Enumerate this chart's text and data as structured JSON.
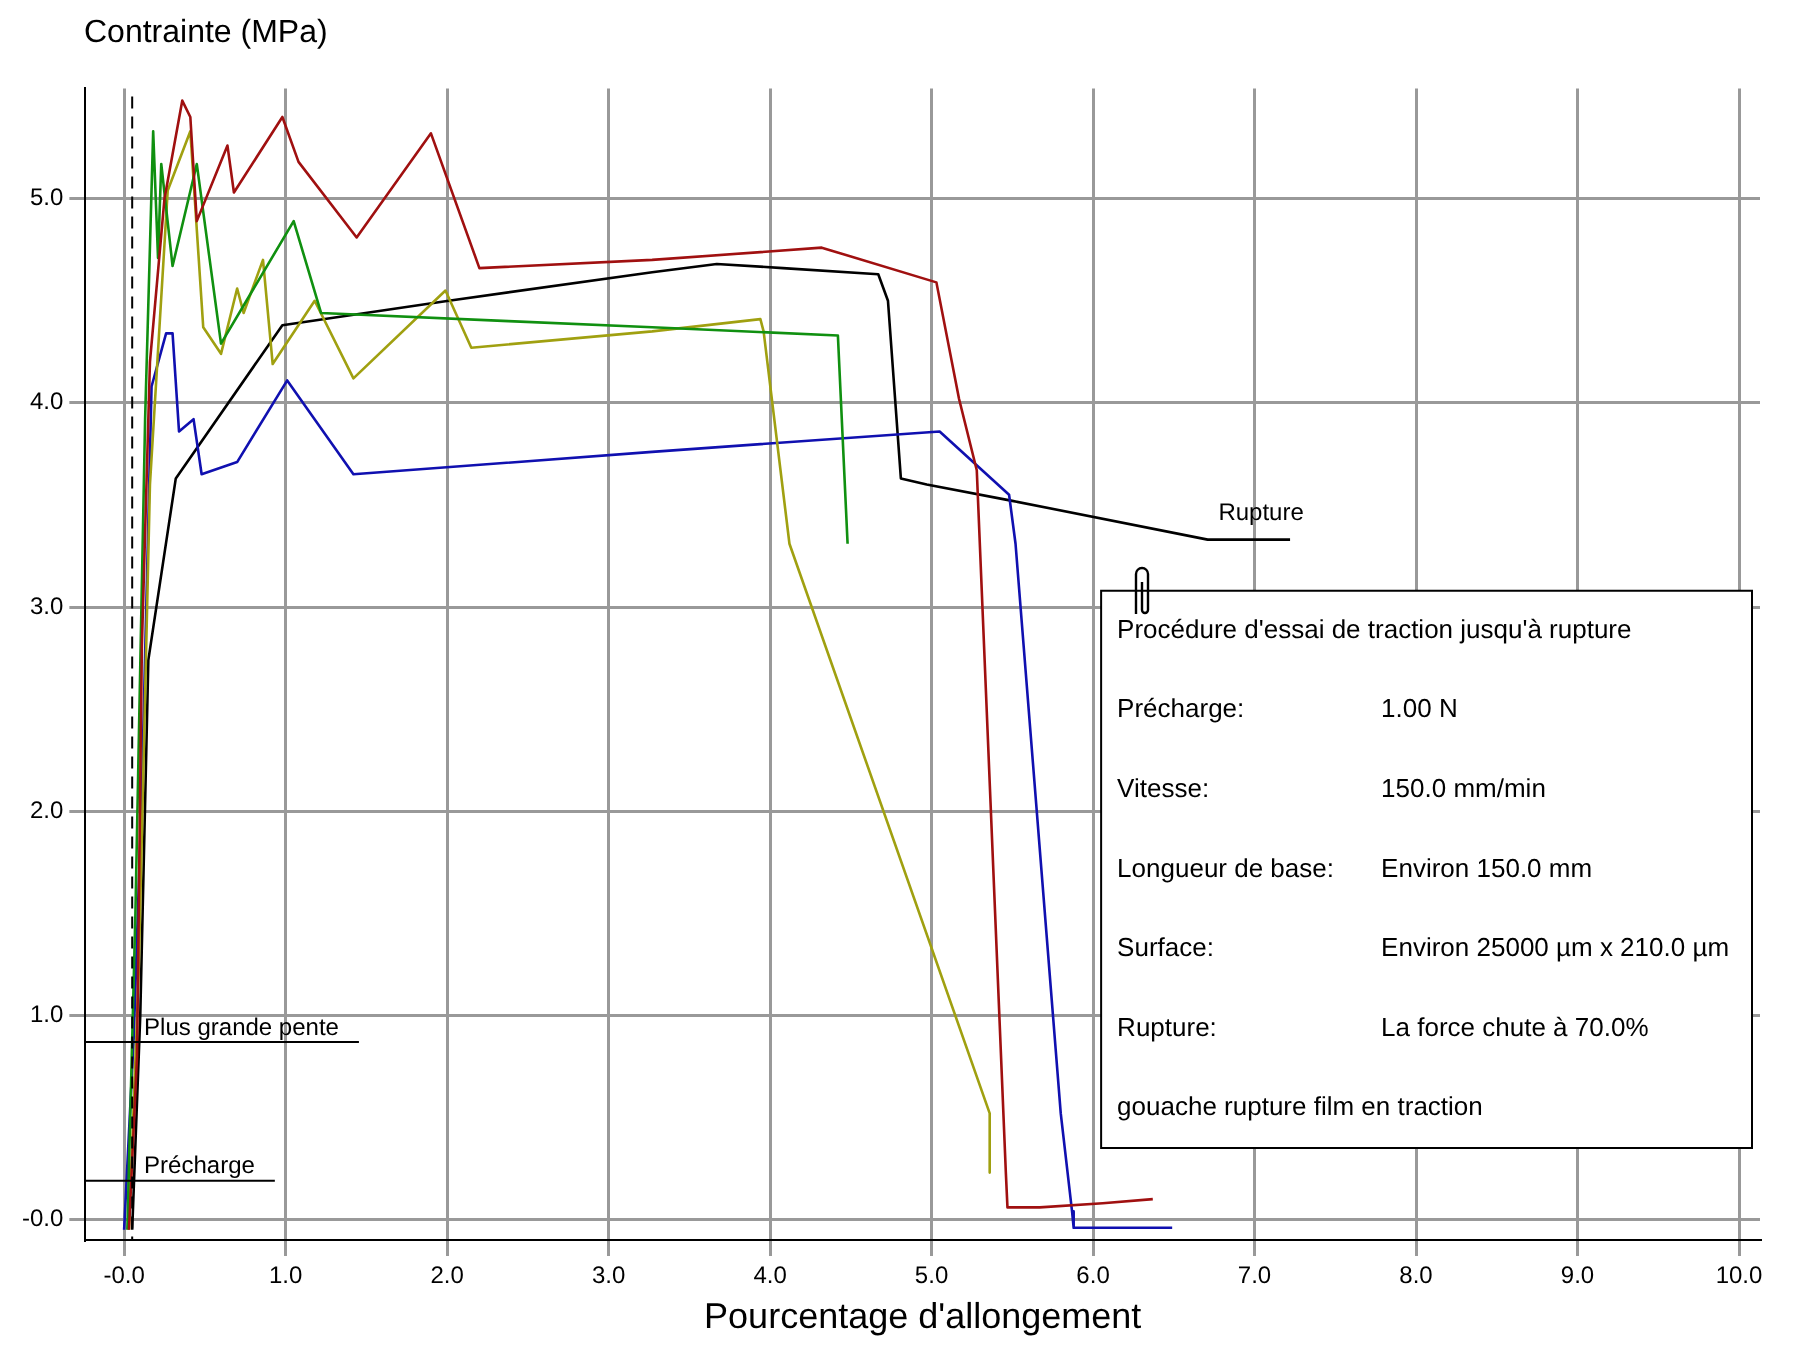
{
  "chart_data": {
    "type": "line",
    "ylabel": "Contrainte (MPa)",
    "xlabel": "Pourcentage d'allongement",
    "xlim": [
      -0.24,
      10.13
    ],
    "ylim": [
      -0.1,
      5.54
    ],
    "xticks": [
      {
        "value": 0,
        "label": "-0.0"
      },
      {
        "value": 1,
        "label": "1.0"
      },
      {
        "value": 2,
        "label": "2.0"
      },
      {
        "value": 3,
        "label": "3.0"
      },
      {
        "value": 4,
        "label": "4.0"
      },
      {
        "value": 5,
        "label": "5.0"
      },
      {
        "value": 6,
        "label": "6.0"
      },
      {
        "value": 7,
        "label": "7.0"
      },
      {
        "value": 8,
        "label": "8.0"
      },
      {
        "value": 9,
        "label": "9.0"
      },
      {
        "value": 10,
        "label": "10.0"
      }
    ],
    "yticks": [
      {
        "value": 0,
        "label": "-0.0"
      },
      {
        "value": 1,
        "label": "1.0"
      },
      {
        "value": 2,
        "label": "2.0"
      },
      {
        "value": 3,
        "label": "3.0"
      },
      {
        "value": 4,
        "label": "4.0"
      },
      {
        "value": 5,
        "label": "5.0"
      }
    ],
    "grid": true,
    "legend": false,
    "marker": "none",
    "line_style": "solid",
    "series": [
      {
        "color": "#a01010",
        "x": [
          0.03,
          0.08,
          0.11,
          0.16,
          0.25,
          0.36,
          0.41,
          0.45,
          0.64,
          0.68,
          0.98,
          1.08,
          1.44,
          1.9,
          2.2,
          3.27,
          4.32,
          5.03,
          5.17,
          5.28,
          5.46,
          5.47,
          5.67,
          6.06,
          6.37
        ],
        "values": [
          -0.05,
          0.8,
          2.81,
          4.2,
          5.0,
          5.48,
          5.4,
          4.89,
          5.26,
          5.03,
          5.4,
          5.18,
          4.81,
          5.32,
          4.66,
          4.7,
          4.76,
          4.59,
          4.02,
          3.67,
          0.23,
          0.06,
          0.06,
          0.08,
          0.1
        ]
      },
      {
        "color": "#109010",
        "x": [
          0.02,
          0.07,
          0.13,
          0.18,
          0.21,
          0.23,
          0.3,
          0.45,
          0.6,
          1.05,
          1.22,
          2.38,
          3.27,
          4.42,
          4.48
        ],
        "values": [
          -0.05,
          1.5,
          3.92,
          5.33,
          4.71,
          5.17,
          4.67,
          5.17,
          4.29,
          4.89,
          4.44,
          4.4,
          4.37,
          4.33,
          3.31
        ]
      },
      {
        "color": "#a0a010",
        "x": [
          0.03,
          0.09,
          0.16,
          0.27,
          0.41,
          0.49,
          0.6,
          0.7,
          0.74,
          0.86,
          0.92,
          1.18,
          1.42,
          1.99,
          2.15,
          3.27,
          3.94,
          3.96,
          4.12,
          5.36,
          5.36
        ],
        "values": [
          -0.05,
          1.2,
          3.6,
          5.04,
          5.33,
          4.37,
          4.24,
          4.56,
          4.44,
          4.7,
          4.19,
          4.5,
          4.12,
          4.55,
          4.27,
          4.35,
          4.41,
          4.35,
          3.31,
          0.52,
          0.23
        ]
      },
      {
        "color": "#1010b0",
        "x": [
          0.0,
          0.06,
          0.11,
          0.17,
          0.26,
          0.3,
          0.34,
          0.43,
          0.48,
          0.7,
          1.01,
          1.42,
          3.27,
          5.05,
          5.48,
          5.52,
          5.8,
          5.87,
          5.88,
          6.49
        ],
        "values": [
          -0.05,
          0.9,
          2.1,
          4.08,
          4.34,
          4.34,
          3.86,
          3.92,
          3.65,
          3.71,
          4.11,
          3.65,
          3.76,
          3.86,
          3.55,
          3.31,
          0.52,
          0.04,
          -0.04,
          -0.04
        ]
      },
      {
        "color": "#000000",
        "x": [
          0.05,
          0.1,
          0.15,
          0.32,
          0.98,
          2.01,
          3.27,
          3.67,
          4.08,
          4.67,
          4.73,
          4.81,
          4.97,
          5.5,
          6.71,
          7.22
        ],
        "values": [
          -0.05,
          1.0,
          2.74,
          3.63,
          4.38,
          4.5,
          4.64,
          4.68,
          4.66,
          4.63,
          4.5,
          3.63,
          3.6,
          3.52,
          3.33,
          3.33
        ]
      }
    ],
    "ref_lines": [
      {
        "axis": "y",
        "value": 0.87,
        "label": "Plus grande pente"
      },
      {
        "axis": "y",
        "value": 0.19,
        "label": "Précharge"
      },
      {
        "axis": "x",
        "value": 0.05,
        "line_style": "dashed"
      }
    ],
    "annotations": [
      "Procédure d'essai de traction jusqu'à rupture",
      "Précharge:",
      "1.00 N",
      "Vitesse:",
      "150.0 mm/min",
      "Longueur de base:",
      "Environ 150.0 mm",
      "Surface:",
      "Environ 25000 µm x 210.0 µm",
      "Rupture:",
      "La force chute à 70.0%",
      "gouache rupture film en traction",
      {
        "text": "Rupture",
        "x": 6.9,
        "y": 3.28
      }
    ]
  }
}
